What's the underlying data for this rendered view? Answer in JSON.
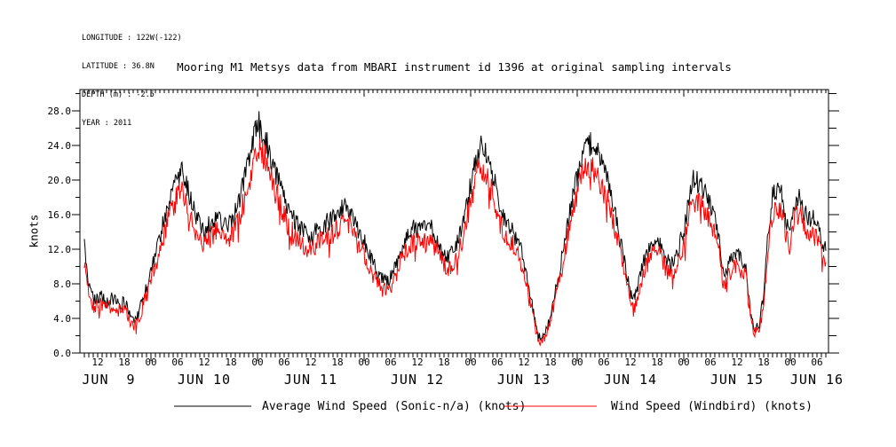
{
  "meta": {
    "lines": [
      "LONGITUDE : 122W(-122)",
      "LATITUDE : 36.8N",
      "DEPTH (m) : -2.5",
      "YEAR : 2011"
    ]
  },
  "title": "Mooring M1 Metsys data from MBARI instrument id 1396 at original sampling intervals",
  "legend": {
    "items": [
      {
        "label": "Average Wind Speed (Sonic-n/a) (knots)",
        "color": "#000000"
      },
      {
        "label": "Wind Speed (Windbird) (knots)",
        "color": "#ff0000"
      }
    ]
  },
  "chart_data": {
    "type": "line",
    "title": "Mooring M1 Metsys data from MBARI instrument id 1396 at original sampling intervals",
    "xlabel": "",
    "ylabel": "knots",
    "ylim": [
      0,
      30.5
    ],
    "y_major_ticks": [
      0,
      4,
      8,
      12,
      16,
      20,
      24,
      28
    ],
    "y_minor_step": 2,
    "grid": false,
    "legend_position": "bottom",
    "x_unit": "hours since 2011-06-09 00:00",
    "xlim": [
      8,
      176.6
    ],
    "hour_ticks": [
      [
        12,
        "12"
      ],
      [
        18,
        "18"
      ],
      [
        24,
        "00"
      ],
      [
        30,
        "06"
      ],
      [
        36,
        "12"
      ],
      [
        42,
        "18"
      ],
      [
        48,
        "00"
      ],
      [
        54,
        "06"
      ],
      [
        60,
        "12"
      ],
      [
        66,
        "18"
      ],
      [
        72,
        "00"
      ],
      [
        78,
        "06"
      ],
      [
        84,
        "12"
      ],
      [
        90,
        "18"
      ],
      [
        96,
        "00"
      ],
      [
        102,
        "06"
      ],
      [
        108,
        "12"
      ],
      [
        114,
        "18"
      ],
      [
        120,
        "00"
      ],
      [
        126,
        "06"
      ],
      [
        132,
        "12"
      ],
      [
        138,
        "18"
      ],
      [
        144,
        "00"
      ],
      [
        150,
        "06"
      ],
      [
        156,
        "12"
      ],
      [
        162,
        "18"
      ],
      [
        168,
        "00"
      ],
      [
        174,
        "06"
      ]
    ],
    "day_labels": [
      {
        "label": "JUN  9",
        "x_hour": 14.5
      },
      {
        "label": "JUN 10",
        "x_hour": 36
      },
      {
        "label": "JUN 11",
        "x_hour": 60
      },
      {
        "label": "JUN 12",
        "x_hour": 84
      },
      {
        "label": "JUN 13",
        "x_hour": 108
      },
      {
        "label": "JUN 14",
        "x_hour": 132
      },
      {
        "label": "JUN 15",
        "x_hour": 156
      },
      {
        "label": "JUN 16",
        "x_hour": 174
      }
    ],
    "start_hour": 9,
    "step_hours": 1,
    "series": [
      {
        "name": "Average Wind Speed (Sonic-n/a) (knots)",
        "color": "#000000",
        "values": [
          12.2,
          8.0,
          6.3,
          6.2,
          6.6,
          5.8,
          6.4,
          6.0,
          5.6,
          6.2,
          4.6,
          3.8,
          4.4,
          6.0,
          7.5,
          9.5,
          11.5,
          13.5,
          15.5,
          17.5,
          19.0,
          20.5,
          21.0,
          19.5,
          17.5,
          16.0,
          14.8,
          14.2,
          14.8,
          15.3,
          15.8,
          15.2,
          14.6,
          15.2,
          16.2,
          17.8,
          19.8,
          22.0,
          24.5,
          26.5,
          26.0,
          24.5,
          22.5,
          21.0,
          19.5,
          18.0,
          16.5,
          15.5,
          14.8,
          14.2,
          13.8,
          13.5,
          14.0,
          14.5,
          14.8,
          15.2,
          15.6,
          16.0,
          16.8,
          17.2,
          16.0,
          14.8,
          13.8,
          13.0,
          11.8,
          10.5,
          9.2,
          8.5,
          8.3,
          8.8,
          10.0,
          11.5,
          13.0,
          14.0,
          14.5,
          14.3,
          14.7,
          14.2,
          14.6,
          13.8,
          12.5,
          11.3,
          11.0,
          11.6,
          12.8,
          14.5,
          17.0,
          19.5,
          22.0,
          24.0,
          23.5,
          22.0,
          20.5,
          18.5,
          16.5,
          15.0,
          14.5,
          13.5,
          12.5,
          10.5,
          8.0,
          5.0,
          2.5,
          1.5,
          2.8,
          4.5,
          7.0,
          9.5,
          12.5,
          15.5,
          18.0,
          20.5,
          22.5,
          24.0,
          24.2,
          23.5,
          22.5,
          21.0,
          19.5,
          17.5,
          15.0,
          12.5,
          9.5,
          7.0,
          6.3,
          8.5,
          10.5,
          12.0,
          13.0,
          13.4,
          12.5,
          11.0,
          10.0,
          11.0,
          12.5,
          14.0,
          17.0,
          20.2,
          19.8,
          19.0,
          18.3,
          17.0,
          15.3,
          13.0,
          8.8,
          10.0,
          11.0,
          11.6,
          10.8,
          10.0,
          5.0,
          2.9,
          3.4,
          6.5,
          14.0,
          18.0,
          19.2,
          18.2,
          15.5,
          13.8,
          17.5,
          18.5,
          16.2,
          15.6,
          15.8,
          14.5,
          13.0,
          11.8
        ]
      },
      {
        "name": "Wind Speed (Windbird) (knots)",
        "color": "#ff0000",
        "values": [
          10.9,
          7.1,
          5.5,
          5.4,
          5.8,
          5.1,
          5.6,
          5.3,
          4.9,
          5.4,
          4.0,
          3.3,
          3.8,
          5.3,
          6.6,
          8.4,
          10.3,
          12.1,
          13.9,
          15.7,
          17.1,
          18.5,
          18.9,
          17.5,
          15.7,
          14.4,
          13.3,
          12.7,
          13.3,
          13.7,
          14.2,
          13.6,
          13.1,
          13.6,
          14.5,
          16.0,
          17.8,
          19.8,
          22.1,
          23.9,
          23.5,
          22.1,
          20.3,
          18.9,
          17.5,
          16.2,
          14.8,
          13.9,
          13.3,
          12.7,
          12.4,
          12.1,
          12.5,
          13.0,
          13.3,
          13.6,
          14.0,
          14.4,
          15.1,
          15.5,
          14.4,
          13.3,
          12.4,
          11.6,
          10.5,
          9.4,
          8.2,
          7.5,
          7.4,
          7.8,
          8.9,
          10.3,
          11.6,
          12.5,
          13.0,
          12.8,
          13.2,
          12.7,
          13.1,
          12.4,
          11.2,
          10.1,
          9.8,
          10.4,
          11.4,
          13.0,
          15.3,
          17.5,
          19.8,
          21.6,
          21.2,
          19.8,
          18.5,
          16.6,
          14.8,
          13.5,
          13.0,
          12.1,
          11.2,
          9.4,
          7.1,
          4.4,
          2.1,
          1.2,
          2.3,
          3.9,
          6.2,
          8.4,
          11.2,
          13.9,
          16.2,
          18.5,
          20.3,
          21.6,
          21.8,
          21.2,
          20.3,
          18.9,
          17.5,
          15.7,
          13.5,
          11.2,
          8.4,
          6.2,
          5.5,
          7.5,
          9.4,
          10.7,
          11.6,
          12.0,
          11.2,
          9.8,
          8.9,
          9.8,
          11.2,
          12.5,
          15.3,
          18.2,
          17.8,
          17.1,
          16.5,
          15.3,
          13.7,
          11.6,
          7.8,
          8.9,
          9.8,
          10.4,
          9.6,
          8.9,
          4.4,
          2.4,
          2.9,
          5.7,
          12.5,
          16.2,
          17.3,
          16.4,
          13.9,
          12.4,
          15.7,
          16.6,
          14.5,
          14.0,
          14.2,
          13.0,
          11.6,
          10.5
        ]
      }
    ],
    "noise": {
      "seed": 1396,
      "samples_per_hour": 6,
      "base_amp": 0.45,
      "amp_per_knot": 0.045,
      "red_amp_scale": 1.18,
      "red_bias": -0.1
    }
  }
}
